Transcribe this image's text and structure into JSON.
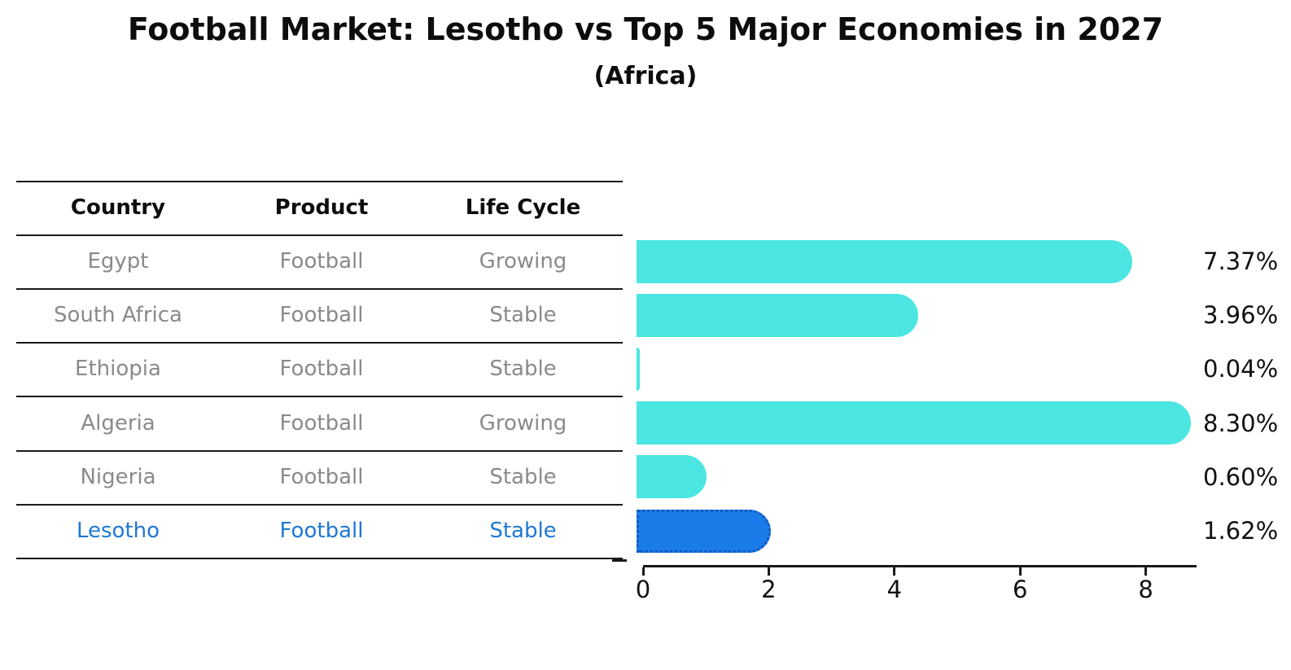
{
  "title": "Football Market: Lesotho vs Top 5 Major Economies in 2027",
  "subtitle": "(Africa)",
  "table": {
    "headers": [
      "Country",
      "Product",
      "Life Cycle"
    ],
    "rows": [
      {
        "country": "Egypt",
        "product": "Football",
        "life_cycle": "Growing",
        "pct_label": "7.37%",
        "highlighted": false
      },
      {
        "country": "South Africa",
        "product": "Football",
        "life_cycle": "Stable",
        "pct_label": "3.96%",
        "highlighted": false
      },
      {
        "country": "Ethiopia",
        "product": "Football",
        "life_cycle": "Stable",
        "pct_label": "0.04%",
        "highlighted": false
      },
      {
        "country": "Algeria",
        "product": "Football",
        "life_cycle": "Growing",
        "pct_label": "8.30%",
        "highlighted": false
      },
      {
        "country": "Nigeria",
        "product": "Football",
        "life_cycle": "Stable",
        "pct_label": "0.60%",
        "highlighted": false
      },
      {
        "country": "Lesotho",
        "product": "Football",
        "life_cycle": "Stable",
        "pct_label": "1.62%",
        "highlighted": true
      }
    ]
  },
  "axis": {
    "ticks": [
      "0",
      "2",
      "4",
      "6",
      "8"
    ]
  },
  "colors": {
    "bar": "#4be6e1",
    "highlight_bar": "#1a7ce8",
    "highlight_border": "#1359bd",
    "highlight_text": "#1e78d6",
    "gray_text": "#8a8a8a",
    "black_text": "#0d0d0d"
  },
  "chart_data": {
    "type": "bar",
    "orientation": "horizontal",
    "title": "Football Market: Lesotho vs Top 5 Major Economies in 2027",
    "subtitle": "(Africa)",
    "categories": [
      "Egypt",
      "South Africa",
      "Ethiopia",
      "Algeria",
      "Nigeria",
      "Lesotho"
    ],
    "values": [
      7.37,
      3.96,
      0.04,
      8.3,
      0.6,
      1.62
    ],
    "value_labels": [
      "7.37%",
      "3.96%",
      "0.04%",
      "8.30%",
      "0.60%",
      "1.62%"
    ],
    "xticks": [
      0,
      2,
      4,
      6,
      8
    ],
    "xlim": [
      0,
      8.9
    ],
    "grid": false,
    "legend": false,
    "highlight_category": "Lesotho",
    "bar_color": "#4be6e1",
    "highlight_color": "#1a7ce8",
    "table_columns": [
      "Country",
      "Product",
      "Life Cycle"
    ],
    "table_rows": [
      [
        "Egypt",
        "Football",
        "Growing"
      ],
      [
        "South Africa",
        "Football",
        "Stable"
      ],
      [
        "Ethiopia",
        "Football",
        "Stable"
      ],
      [
        "Algeria",
        "Football",
        "Growing"
      ],
      [
        "Nigeria",
        "Football",
        "Stable"
      ],
      [
        "Lesotho",
        "Football",
        "Stable"
      ]
    ]
  }
}
